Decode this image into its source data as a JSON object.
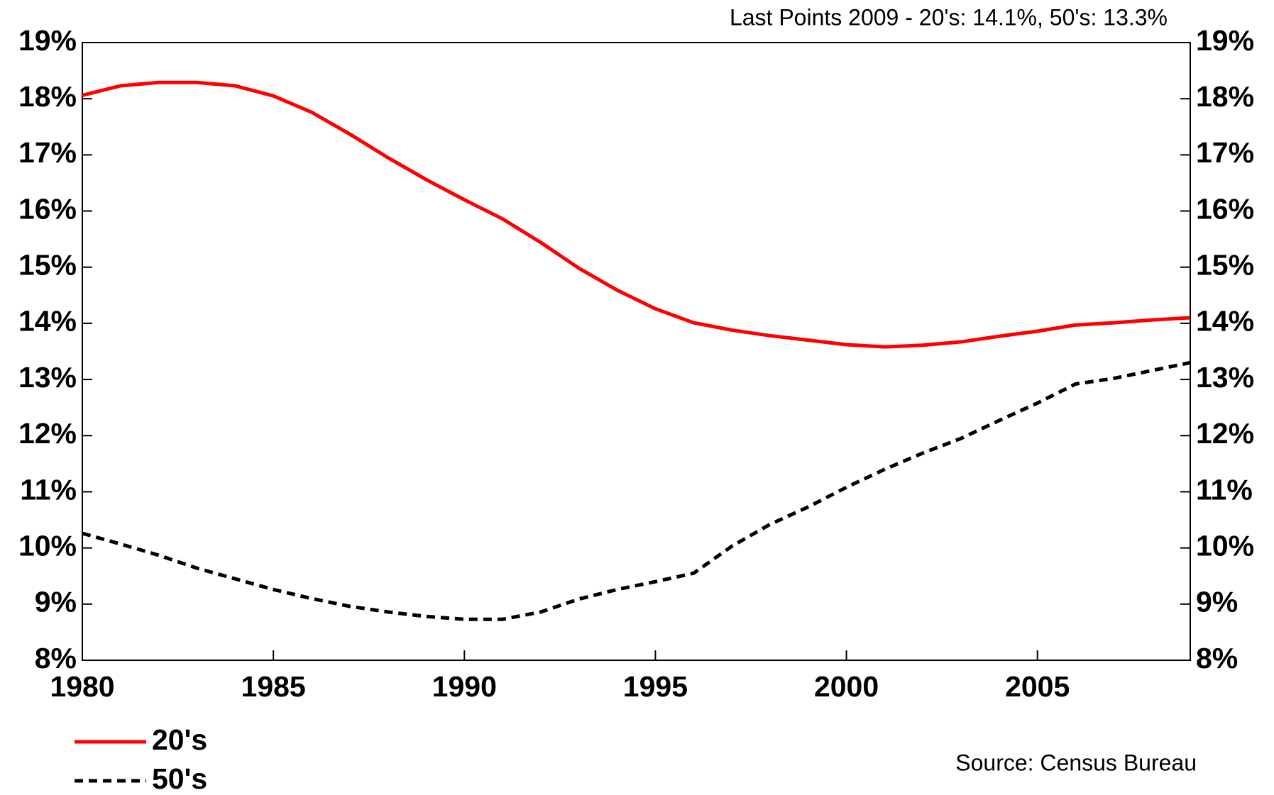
{
  "chart_data": {
    "type": "line",
    "annotation": "Last Points 2009 - 20's: 14.1%, 50's: 13.3%",
    "source": "Source: Census Bureau",
    "x": [
      1980,
      1981,
      1982,
      1983,
      1984,
      1985,
      1986,
      1987,
      1988,
      1989,
      1990,
      1991,
      1992,
      1993,
      1994,
      1995,
      1996,
      1997,
      1998,
      1999,
      2000,
      2001,
      2002,
      2003,
      2004,
      2005,
      2006,
      2007,
      2008,
      2009
    ],
    "series": [
      {
        "name": "20's",
        "color": "#ff0000",
        "dash": "solid",
        "values": [
          18.06,
          18.23,
          18.29,
          18.29,
          18.23,
          18.05,
          17.76,
          17.37,
          16.95,
          16.56,
          16.2,
          15.86,
          15.44,
          14.98,
          14.59,
          14.26,
          14.01,
          13.88,
          13.78,
          13.7,
          13.62,
          13.58,
          13.61,
          13.67,
          13.77,
          13.86,
          13.97,
          14.01,
          14.06,
          14.1
        ]
      },
      {
        "name": "50's",
        "color": "#000000",
        "dash": "dashed",
        "values": [
          10.26,
          10.07,
          9.87,
          9.64,
          9.45,
          9.26,
          9.1,
          8.96,
          8.86,
          8.78,
          8.73,
          8.73,
          8.86,
          9.09,
          9.26,
          9.4,
          9.55,
          10.03,
          10.42,
          10.73,
          11.08,
          11.4,
          11.69,
          11.95,
          12.27,
          12.58,
          12.92,
          13.02,
          13.16,
          13.3
        ]
      }
    ],
    "xlim": [
      1980,
      2009
    ],
    "xticks": [
      1980,
      1985,
      1990,
      1995,
      2000,
      2005
    ],
    "ylim": [
      8,
      19
    ],
    "yticks": [
      {
        "value": 8,
        "label": "8%"
      },
      {
        "value": 9,
        "label": "9%"
      },
      {
        "value": 10,
        "label": "10%"
      },
      {
        "value": 11,
        "label": "11%"
      },
      {
        "value": 12,
        "label": "12%"
      },
      {
        "value": 13,
        "label": "13%"
      },
      {
        "value": 14,
        "label": "14%"
      },
      {
        "value": 15,
        "label": "15%"
      },
      {
        "value": 16,
        "label": "16%"
      },
      {
        "value": 17,
        "label": "17%"
      },
      {
        "value": 18,
        "label": "18%"
      },
      {
        "value": 19,
        "label": "19%"
      }
    ],
    "y2lim": [
      8,
      19
    ],
    "y2ticks": [
      {
        "value": 8,
        "label": "8%"
      },
      {
        "value": 9,
        "label": "9%"
      },
      {
        "value": 10,
        "label": "10%"
      },
      {
        "value": 11,
        "label": "11%"
      },
      {
        "value": 12,
        "label": "12%"
      },
      {
        "value": 13,
        "label": "13%"
      },
      {
        "value": 14,
        "label": "14%"
      },
      {
        "value": 15,
        "label": "15%"
      },
      {
        "value": 16,
        "label": "16%"
      },
      {
        "value": 17,
        "label": "17%"
      },
      {
        "value": 18,
        "label": "18%"
      },
      {
        "value": 19,
        "label": "19%"
      }
    ],
    "grid": false
  }
}
